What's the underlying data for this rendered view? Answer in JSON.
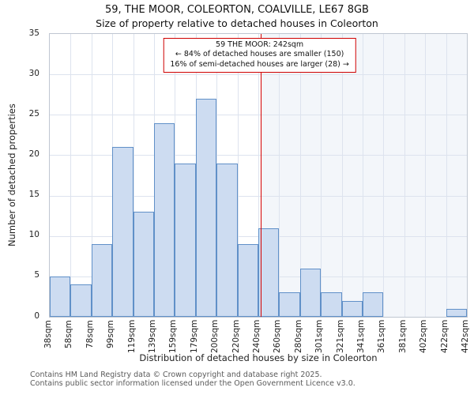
{
  "chart_data": {
    "type": "bar",
    "title": "59, THE MOOR, COLEORTON, COALVILLE, LE67 8GB",
    "subtitle": "Size of property relative to detached houses in Coleorton",
    "xlabel": "Distribution of detached houses by size in Coleorton",
    "ylabel": "Number of detached properties",
    "categories": [
      "38sqm",
      "58sqm",
      "78sqm",
      "99sqm",
      "119sqm",
      "139sqm",
      "159sqm",
      "179sqm",
      "200sqm",
      "220sqm",
      "240sqm",
      "260sqm",
      "280sqm",
      "301sqm",
      "321sqm",
      "341sqm",
      "361sqm",
      "381sqm",
      "402sqm",
      "422sqm",
      "442sqm"
    ],
    "values": [
      5,
      4,
      9,
      21,
      13,
      24,
      19,
      27,
      19,
      9,
      11,
      3,
      6,
      3,
      2,
      3,
      0,
      0,
      0,
      1
    ],
    "ylim": [
      0,
      35
    ],
    "yticks": [
      0,
      5,
      10,
      15,
      20,
      25,
      30,
      35
    ],
    "ytick_step": 5,
    "grid": true,
    "legend": "none",
    "marker": {
      "label": "59 THE MOOR: 242sqm",
      "x_sqm": 242,
      "bin_index": 10,
      "fraction_in_bin": 0.1,
      "color": "#d40000"
    },
    "annotation": {
      "lines": [
        "59 THE MOOR: 242sqm",
        "← 84% of detached houses are smaller (150)",
        "16% of semi-detached houses are larger (28) →"
      ]
    },
    "colors": {
      "bar_fill": "#cddcf1",
      "bar_border": "#6090c8",
      "grid": "#dde3ee",
      "marker": "#d40000",
      "shade_right": "rgba(120,150,205,0.09)"
    }
  },
  "footer": {
    "line1": "Contains HM Land Registry data © Crown copyright and database right 2025.",
    "line2": "Contains public sector information licensed under the Open Government Licence v3.0."
  }
}
